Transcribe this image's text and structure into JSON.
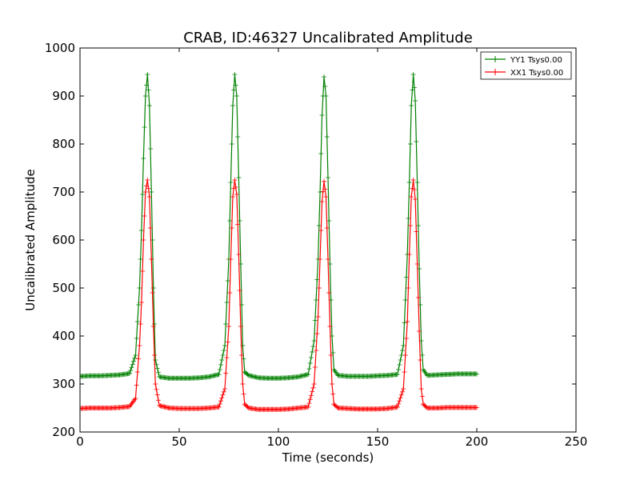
{
  "chart_data": {
    "type": "line",
    "title": "CRAB, ID:46327 Uncalibrated Amplitude",
    "xlabel": "Time (seconds)",
    "ylabel": "Uncalibrated Amplitude",
    "xlim": [
      0,
      250
    ],
    "ylim": [
      200,
      1000
    ],
    "xticks": [
      0,
      50,
      100,
      150,
      200,
      250
    ],
    "yticks": [
      200,
      300,
      400,
      500,
      600,
      700,
      800,
      900,
      1000
    ],
    "grid": false,
    "legend_position": "top-right",
    "marker": "plus",
    "series": [
      {
        "name": "YY1 Tsys0.00",
        "color": "#008000",
        "x": [
          0,
          5,
          10,
          15,
          20,
          25,
          28,
          30,
          31,
          32,
          33,
          34,
          35,
          36,
          37,
          38,
          40,
          45,
          50,
          55,
          60,
          65,
          70,
          73,
          75,
          76,
          77,
          78,
          79,
          80,
          81,
          82,
          83,
          85,
          90,
          95,
          100,
          105,
          110,
          115,
          118,
          120,
          121,
          122,
          123,
          124,
          125,
          126,
          127,
          128,
          130,
          135,
          140,
          145,
          150,
          155,
          160,
          163,
          165,
          166,
          167,
          168,
          169,
          170,
          171,
          172,
          173,
          175,
          180,
          185,
          190,
          195,
          200
        ],
        "y": [
          316,
          317,
          317,
          318,
          319,
          322,
          360,
          500,
          620,
          770,
          900,
          945,
          880,
          700,
          500,
          350,
          315,
          312,
          312,
          312,
          313,
          315,
          320,
          380,
          560,
          720,
          880,
          945,
          900,
          730,
          550,
          380,
          325,
          318,
          313,
          312,
          312,
          313,
          315,
          320,
          390,
          560,
          700,
          860,
          940,
          900,
          730,
          550,
          400,
          330,
          318,
          316,
          316,
          316,
          317,
          318,
          320,
          380,
          570,
          720,
          880,
          945,
          890,
          720,
          540,
          390,
          330,
          318,
          319,
          320,
          321,
          321,
          321
        ]
      },
      {
        "name": "XX1 Tsys0.00",
        "color": "#ff0000",
        "x": [
          0,
          5,
          10,
          15,
          20,
          25,
          28,
          30,
          31,
          32,
          33,
          34,
          35,
          36,
          37,
          38,
          40,
          45,
          50,
          55,
          60,
          65,
          70,
          73,
          75,
          76,
          77,
          78,
          79,
          80,
          81,
          82,
          83,
          85,
          90,
          95,
          100,
          105,
          110,
          115,
          118,
          120,
          121,
          122,
          123,
          124,
          125,
          126,
          127,
          128,
          130,
          135,
          140,
          145,
          150,
          155,
          160,
          163,
          165,
          166,
          167,
          168,
          169,
          170,
          171,
          172,
          173,
          175,
          180,
          185,
          190,
          195,
          200
        ],
        "y": [
          249,
          250,
          250,
          250,
          251,
          253,
          270,
          380,
          470,
          600,
          700,
          725,
          690,
          560,
          420,
          300,
          255,
          250,
          249,
          249,
          249,
          250,
          252,
          290,
          420,
          560,
          690,
          725,
          695,
          570,
          420,
          300,
          258,
          250,
          247,
          247,
          247,
          248,
          250,
          252,
          300,
          440,
          560,
          680,
          722,
          690,
          560,
          420,
          300,
          258,
          250,
          249,
          248,
          248,
          248,
          249,
          252,
          290,
          430,
          570,
          690,
          725,
          685,
          550,
          410,
          290,
          258,
          250,
          250,
          251,
          251,
          251,
          251
        ]
      }
    ]
  }
}
